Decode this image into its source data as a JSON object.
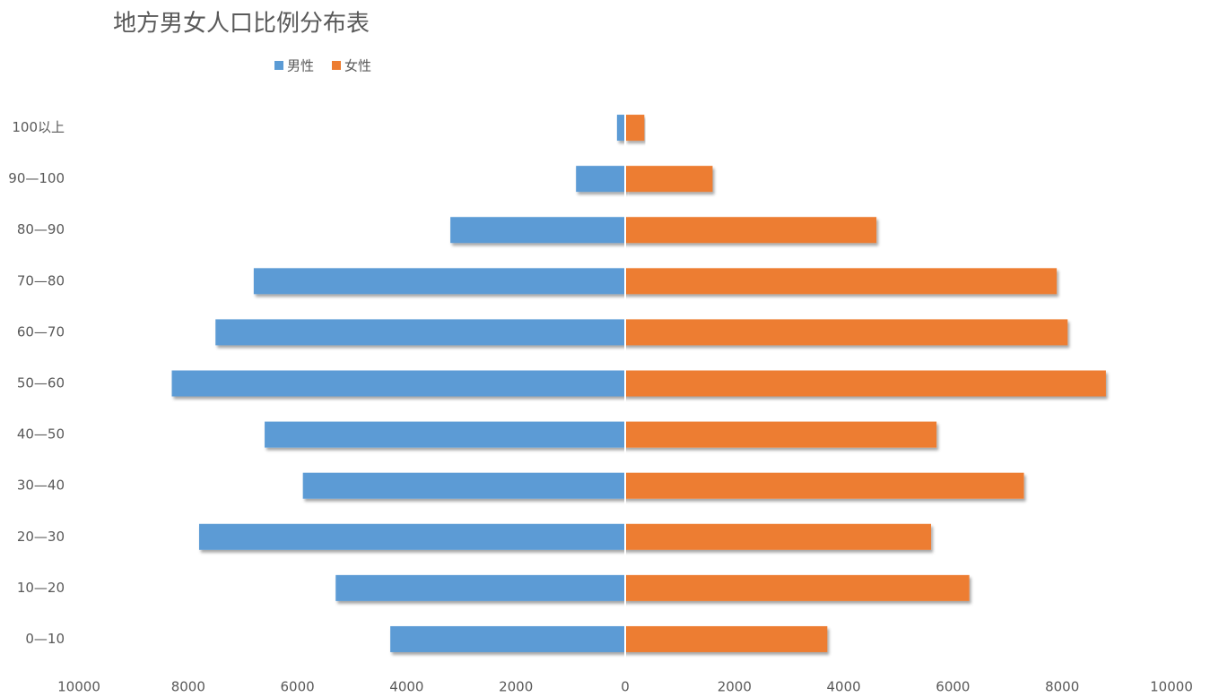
{
  "chart_data": {
    "type": "bar",
    "orientation": "horizontal",
    "title": "地方男女人口比例分布表",
    "categories": [
      "0—10",
      "10—20",
      "20—30",
      "30—40",
      "40—50",
      "50—60",
      "60—70",
      "70—80",
      "80—90",
      "90—100",
      "100以上"
    ],
    "series": [
      {
        "name": "男性",
        "color": "#5b9bd5",
        "values": [
          -4300,
          -5300,
          -7800,
          -5900,
          -6600,
          -8300,
          -7500,
          -6800,
          -3200,
          -900,
          -150
        ]
      },
      {
        "name": "女性",
        "color": "#ed7d31",
        "values": [
          3700,
          6300,
          5600,
          7300,
          5700,
          8800,
          8100,
          7900,
          4600,
          1600,
          350
        ]
      }
    ],
    "xlim": [
      -10000,
      10000
    ],
    "xticks": [
      {
        "value": -10000,
        "label": "10000"
      },
      {
        "value": -8000,
        "label": "8000"
      },
      {
        "value": -6000,
        "label": "6000"
      },
      {
        "value": -4000,
        "label": "4000"
      },
      {
        "value": -2000,
        "label": "2000"
      },
      0,
      2000,
      4000,
      6000,
      8000,
      10000
    ],
    "legend": "top"
  }
}
